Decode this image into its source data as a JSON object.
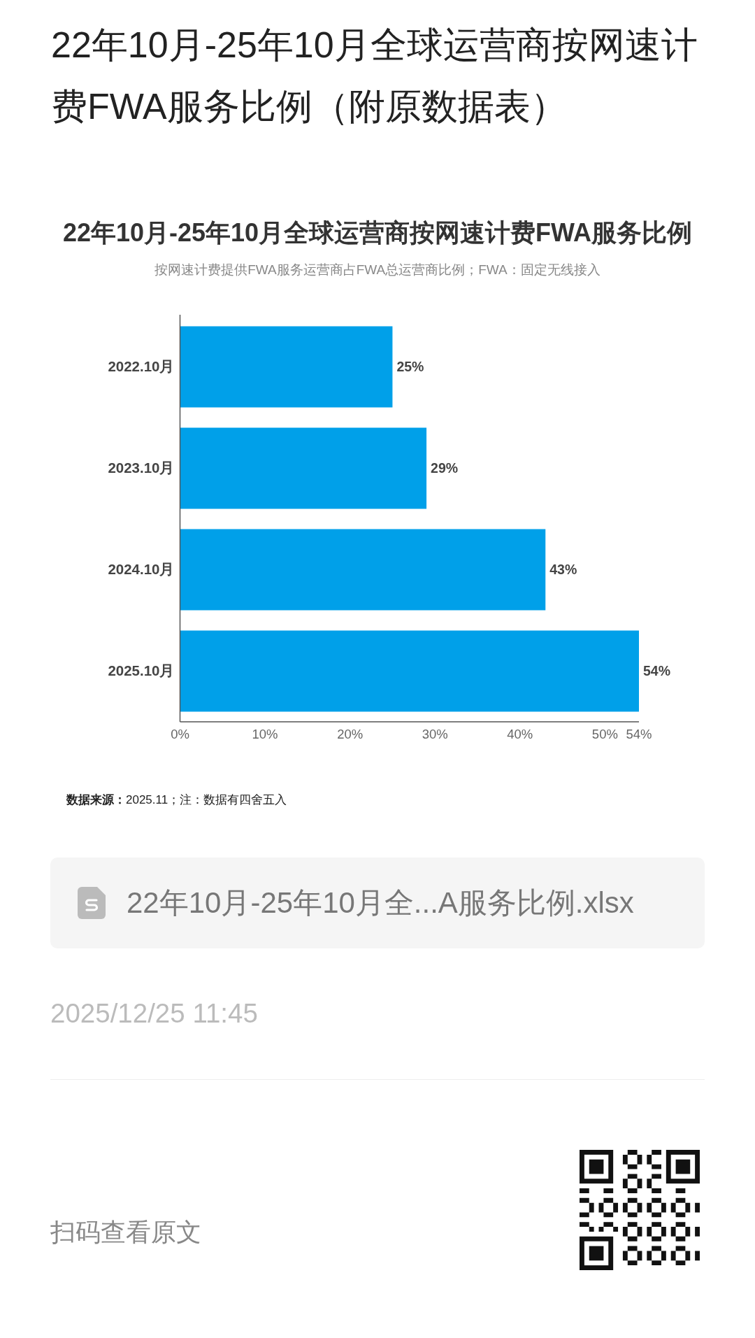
{
  "chart_data": {
    "type": "bar",
    "orientation": "horizontal",
    "title": "22年10月-25年10月全球运营商按网速计费FWA服务比例",
    "subtitle": "按网速计费提供FWA服务运营商占FWA总运营商比例；FWA：固定无线接入",
    "categories": [
      "2022.10月",
      "2023.10月",
      "2024.10月",
      "2025.10月"
    ],
    "values": [
      25,
      29,
      43,
      54
    ],
    "value_labels": [
      "25%",
      "29%",
      "43%",
      "54%"
    ],
    "color": "#00a0e9",
    "xlim": [
      0,
      54
    ],
    "xticks": [
      {
        "value": 0,
        "label": "0%"
      },
      {
        "value": 10,
        "label": "10%"
      },
      {
        "value": 20,
        "label": "20%"
      },
      {
        "value": 30,
        "label": "30%"
      },
      {
        "value": 40,
        "label": "40%"
      },
      {
        "value": 50,
        "label": "50%"
      },
      {
        "value": 54,
        "label": "54%"
      }
    ],
    "annotations": [
      "22年10月-25年10月全球运营商按网速计费FWA服务比例（附原数据表）",
      "**数据来源：**2025.11；注：数据有四舍五入",
      "22年10月-25年10月全...A服务比例.xlsx",
      "2025/12/25 11:45",
      "扫码查看原文"
    ]
  }
}
